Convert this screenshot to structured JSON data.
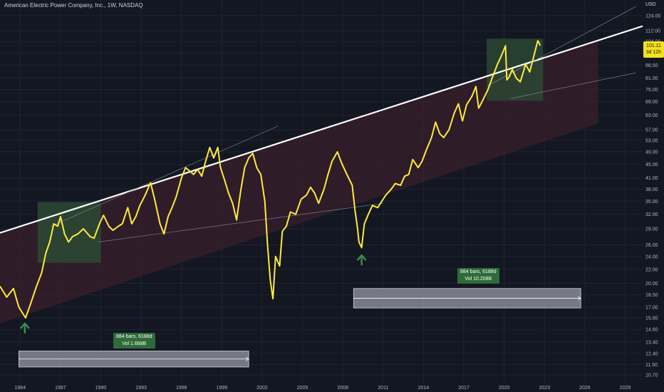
{
  "header": {
    "title": "American Electric Power Company, Inc., 1W, NASDAQ",
    "currency": "USD"
  },
  "price_tag": {
    "price": "101.11",
    "countdown": "3d 12h"
  },
  "measure_boxes": [
    {
      "bars": "884 bars, 6188d",
      "volume": "Vol 1.668B"
    },
    {
      "bars": "884 bars, 6188d",
      "volume": "Vol 10.208B"
    }
  ],
  "colors": {
    "background": "#131722",
    "series": "#ffeb3b",
    "trend_line": "#ffffff",
    "channel_fill": "#3a1f2c",
    "zone_fill": "#2c4a34",
    "stat_box": "#2e6b3a",
    "arrow": "#3d8b4a"
  },
  "icons": [
    "up-arrow-icon",
    "up-arrow-icon"
  ],
  "chart_data": {
    "type": "line",
    "scale": "log",
    "interval": "1W",
    "x_tick_labels": [
      "1984",
      "1987",
      "1990",
      "1993",
      "1996",
      "1999",
      "2002",
      "2005",
      "2008",
      "2011",
      "2014",
      "2017",
      "2020",
      "2023",
      "2026",
      "2029"
    ],
    "y_tick_labels": [
      "124.00",
      "112.00",
      "104.00",
      "96.00",
      "88.50",
      "81.00",
      "75.00",
      "69.00",
      "63.00",
      "57.00",
      "53.00",
      "49.00",
      "45.00",
      "41.00",
      "38.00",
      "35.00",
      "32.00",
      "29.00",
      "26.00",
      "24.00",
      "22.00",
      "20.00",
      "18.50",
      "17.00",
      "15.80",
      "14.60",
      "13.40",
      "12.40",
      "11.50",
      "10.70"
    ],
    "x_range": [
      1982.5,
      2030.3
    ],
    "y_range": [
      10.2,
      138
    ],
    "series": [
      {
        "values": [
          [
            1982.5,
            19.6
          ],
          [
            1983.0,
            18.2
          ],
          [
            1983.5,
            19.3
          ],
          [
            1983.9,
            17.0
          ],
          [
            1984.4,
            15.8
          ],
          [
            1984.8,
            17.5
          ],
          [
            1985.2,
            19.5
          ],
          [
            1985.6,
            21.5
          ],
          [
            1985.9,
            24.5
          ],
          [
            1986.2,
            26.5
          ],
          [
            1986.5,
            30.0
          ],
          [
            1986.8,
            29.5
          ],
          [
            1987.0,
            31.5
          ],
          [
            1987.3,
            28.0
          ],
          [
            1987.6,
            26.5
          ],
          [
            1987.9,
            27.5
          ],
          [
            1988.3,
            28.0
          ],
          [
            1988.7,
            29.0
          ],
          [
            1989.2,
            27.5
          ],
          [
            1989.5,
            27.2
          ],
          [
            1989.9,
            30.0
          ],
          [
            1990.2,
            31.8
          ],
          [
            1990.6,
            29.5
          ],
          [
            1990.9,
            28.7
          ],
          [
            1991.3,
            29.5
          ],
          [
            1991.6,
            30.0
          ],
          [
            1992.0,
            33.5
          ],
          [
            1992.3,
            30.0
          ],
          [
            1992.6,
            31.5
          ],
          [
            1992.9,
            34.0
          ],
          [
            1993.3,
            36.5
          ],
          [
            1993.7,
            39.7
          ],
          [
            1994.0,
            35.5
          ],
          [
            1994.4,
            30.0
          ],
          [
            1994.7,
            28.0
          ],
          [
            1995.0,
            31.5
          ],
          [
            1995.3,
            33.5
          ],
          [
            1995.6,
            36.0
          ],
          [
            1996.0,
            41.0
          ],
          [
            1996.3,
            44.0
          ],
          [
            1996.6,
            43.0
          ],
          [
            1996.9,
            42.0
          ],
          [
            1997.2,
            43.5
          ],
          [
            1997.5,
            41.5
          ],
          [
            1997.8,
            46.0
          ],
          [
            1998.1,
            50.5
          ],
          [
            1998.4,
            47.0
          ],
          [
            1998.7,
            50.5
          ],
          [
            1998.9,
            44.0
          ],
          [
            1999.2,
            40.5
          ],
          [
            1999.5,
            37.0
          ],
          [
            1999.8,
            34.5
          ],
          [
            2000.1,
            30.8
          ],
          [
            2000.4,
            37.5
          ],
          [
            2000.7,
            44.0
          ],
          [
            2001.0,
            47.0
          ],
          [
            2001.3,
            48.5
          ],
          [
            2001.6,
            44.0
          ],
          [
            2001.9,
            42.0
          ],
          [
            2002.2,
            35.0
          ],
          [
            2002.4,
            26.0
          ],
          [
            2002.6,
            20.5
          ],
          [
            2002.8,
            18.0
          ],
          [
            2003.0,
            24.0
          ],
          [
            2003.3,
            22.5
          ],
          [
            2003.5,
            28.5
          ],
          [
            2003.8,
            29.5
          ],
          [
            2004.1,
            32.5
          ],
          [
            2004.5,
            32.0
          ],
          [
            2004.9,
            35.5
          ],
          [
            2005.3,
            36.5
          ],
          [
            2005.6,
            38.5
          ],
          [
            2005.9,
            37.0
          ],
          [
            2006.2,
            34.5
          ],
          [
            2006.6,
            38.0
          ],
          [
            2006.9,
            42.0
          ],
          [
            2007.2,
            46.0
          ],
          [
            2007.6,
            49.0
          ],
          [
            2007.9,
            45.5
          ],
          [
            2008.3,
            42.0
          ],
          [
            2008.7,
            39.0
          ],
          [
            2008.9,
            33.0
          ],
          [
            2009.1,
            29.0
          ],
          [
            2009.2,
            26.5
          ],
          [
            2009.4,
            25.5
          ],
          [
            2009.6,
            30.0
          ],
          [
            2009.9,
            32.0
          ],
          [
            2010.2,
            34.0
          ],
          [
            2010.6,
            33.5
          ],
          [
            2010.9,
            35.0
          ],
          [
            2011.2,
            36.5
          ],
          [
            2011.6,
            38.0
          ],
          [
            2011.9,
            39.5
          ],
          [
            2012.3,
            39.0
          ],
          [
            2012.6,
            41.5
          ],
          [
            2012.9,
            42.0
          ],
          [
            2013.2,
            46.5
          ],
          [
            2013.6,
            44.0
          ],
          [
            2013.9,
            46.0
          ],
          [
            2014.2,
            49.5
          ],
          [
            2014.6,
            54.0
          ],
          [
            2014.9,
            60.0
          ],
          [
            2015.2,
            55.5
          ],
          [
            2015.5,
            54.0
          ],
          [
            2015.9,
            57.0
          ],
          [
            2016.3,
            64.0
          ],
          [
            2016.6,
            68.0
          ],
          [
            2016.9,
            60.5
          ],
          [
            2017.2,
            67.5
          ],
          [
            2017.6,
            71.5
          ],
          [
            2017.9,
            76.5
          ],
          [
            2018.1,
            66.0
          ],
          [
            2018.4,
            69.5
          ],
          [
            2018.8,
            75.0
          ],
          [
            2019.1,
            81.0
          ],
          [
            2019.5,
            89.0
          ],
          [
            2019.8,
            94.5
          ],
          [
            2020.1,
            101.0
          ],
          [
            2020.2,
            80.0
          ],
          [
            2020.4,
            82.0
          ],
          [
            2020.6,
            86.0
          ],
          [
            2020.9,
            81.0
          ],
          [
            2021.2,
            79.0
          ],
          [
            2021.6,
            89.0
          ],
          [
            2021.9,
            84.5
          ],
          [
            2022.2,
            94.0
          ],
          [
            2022.5,
            104.5
          ],
          [
            2022.6,
            103.0
          ],
          [
            2022.68,
            101.11
          ]
        ]
      }
    ]
  }
}
